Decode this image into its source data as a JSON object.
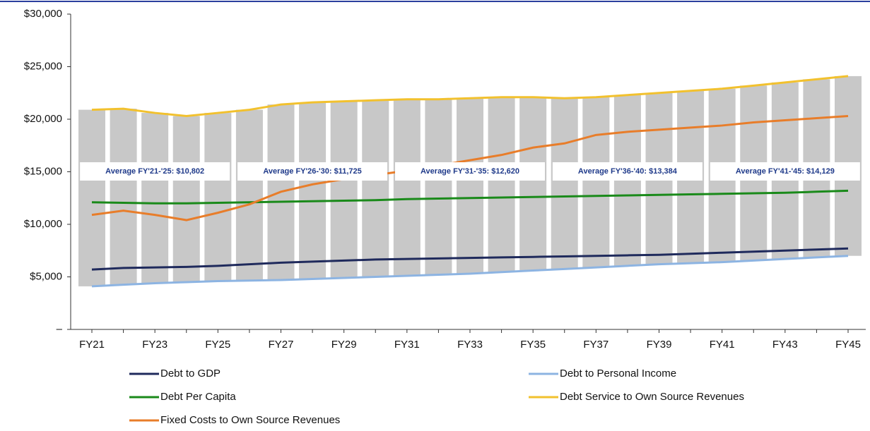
{
  "chart_data": {
    "type": "line",
    "categories": [
      "FY21",
      null,
      "FY23",
      null,
      "FY25",
      null,
      "FY27",
      null,
      "FY29",
      null,
      "FY31",
      null,
      "FY33",
      null,
      "FY35",
      null,
      "FY37",
      null,
      "FY39",
      null,
      "FY41",
      null,
      "FY43",
      null,
      "FY45"
    ],
    "series": [
      {
        "name": "Debt to GDP",
        "color": "#1f2a5c",
        "values": [
          5700,
          5850,
          5900,
          5950,
          6050,
          6200,
          6350,
          6450,
          6550,
          6650,
          6700,
          6750,
          6800,
          6850,
          6900,
          6950,
          7000,
          7050,
          7100,
          7200,
          7300,
          7400,
          7500,
          7600,
          7700
        ]
      },
      {
        "name": "Debt to Personal Income",
        "color": "#8db4e2",
        "values": [
          4100,
          4250,
          4400,
          4500,
          4600,
          4650,
          4700,
          4800,
          4900,
          5000,
          5100,
          5200,
          5300,
          5450,
          5600,
          5750,
          5900,
          6050,
          6200,
          6300,
          6400,
          6550,
          6700,
          6850,
          7000
        ]
      },
      {
        "name": "Debt Per Capita",
        "color": "#1a8a1a",
        "values": [
          12100,
          12050,
          12000,
          12000,
          12050,
          12100,
          12150,
          12200,
          12250,
          12300,
          12400,
          12450,
          12500,
          12550,
          12600,
          12650,
          12700,
          12750,
          12800,
          12850,
          12900,
          12950,
          13000,
          13100,
          13200
        ]
      },
      {
        "name": "Debt Service to Own Source Revenues",
        "color": "#f2c12e",
        "values": [
          20900,
          21000,
          20600,
          20300,
          20600,
          20900,
          21400,
          21600,
          21700,
          21800,
          21900,
          21900,
          22000,
          22100,
          22100,
          22000,
          22100,
          22300,
          22500,
          22700,
          22900,
          23200,
          23500,
          23800,
          24100
        ]
      },
      {
        "name": "Fixed Costs to Own Source Revenues",
        "color": "#e87d2a",
        "values": [
          10900,
          11300,
          10900,
          10400,
          11100,
          11900,
          13100,
          13800,
          14300,
          14700,
          15100,
          15600,
          16100,
          16600,
          17300,
          17700,
          18500,
          18800,
          19000,
          19200,
          19400,
          19700,
          19900,
          20100,
          20300
        ]
      }
    ],
    "annotations": [
      "Average FY'21-'25: $10,802",
      "Average FY'26-'30: $11,725",
      "Average FY'31-'35: $12,620",
      "Average FY'36-'40: $13,384",
      "Average FY'41-'45: $14,129"
    ],
    "ylim": [
      0,
      30000
    ],
    "yticks": [
      {
        "value": 0,
        "label": "–"
      },
      {
        "value": 5000,
        "label": "$5,000"
      },
      {
        "value": 10000,
        "label": "$10,000"
      },
      {
        "value": 15000,
        "label": "$15,000"
      },
      {
        "value": 20000,
        "label": "$20,000"
      },
      {
        "value": 25000,
        "label": "$25,000"
      },
      {
        "value": 30000,
        "label": "$30,000"
      }
    ],
    "range_bar_color": "#c8c8c8"
  }
}
